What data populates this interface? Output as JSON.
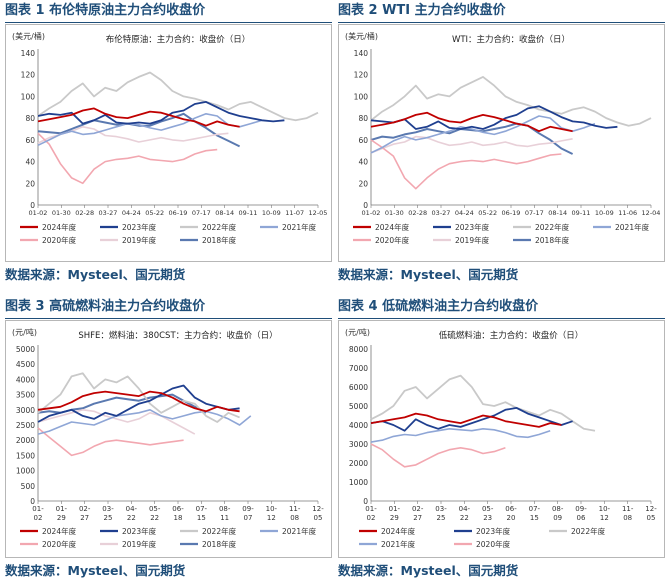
{
  "panels": [
    {
      "title": "图表 1 布伦特原油主力合约收盘价",
      "source": "数据来源：Mysteel、国元期货",
      "chart_data": {
        "type": "line",
        "unit_label": "(美元/桶)",
        "inner_title": "布伦特原油：主力合约：收盘价（日）",
        "ylim": [
          0,
          140
        ],
        "yticks": [
          0,
          20,
          40,
          60,
          80,
          100,
          120,
          140
        ],
        "x_ticks": [
          "01-02",
          "01-30",
          "02-28",
          "03-27",
          "04-24",
          "05-22",
          "06-19",
          "07-17",
          "08-14",
          "09-11",
          "10-09",
          "11-07",
          "12-05"
        ],
        "legend_cols": 4,
        "series": [
          {
            "name": "2024年度",
            "color": "#c00000",
            "width": 1.8,
            "values": [
              77,
              79,
              81,
              83,
              87,
              89,
              84,
              81,
              80,
              83,
              86,
              85,
              82,
              79,
              77,
              73,
              77,
              74,
              72
            ]
          },
          {
            "name": "2023年度",
            "color": "#1f3f8f",
            "width": 1.8,
            "values": [
              82,
              84,
              83,
              85,
              75,
              78,
              83,
              76,
              75,
              76,
              75,
              78,
              85,
              87,
              93,
              95,
              90,
              85,
              82,
              80,
              78,
              77,
              78
            ]
          },
          {
            "name": "2022年度",
            "color": "#c9c9c9",
            "width": 1.8,
            "values": [
              82,
              89,
              95,
              105,
              112,
              100,
              108,
              105,
              113,
              118,
              122,
              115,
              105,
              100,
              98,
              95,
              92,
              88,
              93,
              95,
              90,
              85,
              80,
              78,
              80,
              85
            ]
          },
          {
            "name": "2021年度",
            "color": "#8fa6d6",
            "width": 1.6,
            "values": [
              55,
              60,
              65,
              68,
              65,
              66,
              69,
              72,
              75,
              74,
              71,
              69,
              72,
              75,
              80,
              84,
              82,
              74,
              72,
              75,
              78
            ]
          },
          {
            "name": "2020年度",
            "color": "#f2a7b0",
            "width": 1.6,
            "values": [
              66,
              56,
              38,
              25,
              20,
              33,
              40,
              42,
              43,
              45,
              42,
              41,
              40,
              42,
              47,
              50,
              51
            ]
          },
          {
            "name": "2019年度",
            "color": "#e8d0d8",
            "width": 1.6,
            "values": [
              57,
              62,
              65,
              68,
              72,
              70,
              64,
              63,
              61,
              58,
              60,
              62,
              60,
              59,
              61,
              63,
              65,
              66
            ]
          },
          {
            "name": "2018年度",
            "color": "#5a79b0",
            "width": 2.0,
            "values": [
              68,
              67,
              66,
              70,
              74,
              78,
              76,
              74,
              75,
              73,
              73,
              77,
              80,
              84,
              77,
              71,
              64,
              59,
              54
            ]
          }
        ]
      }
    },
    {
      "title": "图表 2 WTI 主力合约收盘价",
      "source": "数据来源：Mysteel、国元期货",
      "chart_data": {
        "type": "line",
        "unit_label": "(美元/桶)",
        "inner_title": "WTI：主力合约：收盘价（日）",
        "ylim": [
          0,
          140
        ],
        "yticks": [
          0,
          20,
          40,
          60,
          80,
          100,
          120,
          140
        ],
        "x_ticks": [
          "01-02",
          "01-30",
          "02-28",
          "03-27",
          "04-24",
          "05-22",
          "06-19",
          "07-17",
          "08-14",
          "09-11",
          "10-09",
          "11-06",
          "12-04"
        ],
        "legend_cols": 4,
        "series": [
          {
            "name": "2024年度",
            "color": "#c00000",
            "width": 1.8,
            "values": [
              72,
              74,
              76,
              79,
              83,
              85,
              80,
              77,
              76,
              80,
              83,
              81,
              78,
              75,
              73,
              68,
              72,
              70,
              68
            ]
          },
          {
            "name": "2023年度",
            "color": "#1f3f8f",
            "width": 1.8,
            "values": [
              78,
              77,
              76,
              79,
              70,
              72,
              77,
              71,
              70,
              72,
              70,
              74,
              80,
              83,
              89,
              91,
              86,
              81,
              77,
              76,
              73,
              71,
              72
            ]
          },
          {
            "name": "2022年度",
            "color": "#c9c9c9",
            "width": 1.8,
            "values": [
              78,
              86,
              92,
              100,
              110,
              98,
              102,
              100,
              108,
              113,
              118,
              110,
              100,
              95,
              92,
              88,
              86,
              84,
              88,
              90,
              86,
              80,
              76,
              73,
              75,
              80
            ]
          },
          {
            "name": "2021年度",
            "color": "#8fa6d6",
            "width": 1.6,
            "values": [
              48,
              53,
              59,
              63,
              60,
              62,
              65,
              68,
              72,
              70,
              67,
              65,
              68,
              72,
              77,
              82,
              80,
              71,
              68,
              71,
              75
            ]
          },
          {
            "name": "2020年度",
            "color": "#f2a7b0",
            "width": 1.6,
            "values": [
              60,
              53,
              45,
              25,
              15,
              25,
              33,
              38,
              40,
              41,
              40,
              42,
              40,
              38,
              40,
              43,
              46,
              47
            ]
          },
          {
            "name": "2019年度",
            "color": "#e8d0d8",
            "width": 1.6,
            "values": [
              48,
              52,
              56,
              58,
              63,
              62,
              58,
              55,
              56,
              58,
              55,
              56,
              58,
              55,
              54,
              56,
              57,
              59,
              61
            ]
          },
          {
            "name": "2018年度",
            "color": "#5a79b0",
            "width": 2.0,
            "values": [
              60,
              63,
              62,
              65,
              67,
              70,
              68,
              66,
              70,
              69,
              68,
              70,
              72,
              75,
              73,
              66,
              60,
              52,
              47
            ]
          }
        ]
      }
    },
    {
      "title": "图表 3 高硫燃料油主力合约收盘价",
      "source": "数据来源：Mysteel、国元期货",
      "chart_data": {
        "type": "line",
        "unit_label": "(元/吨)",
        "inner_title": "SHFE：燃料油：380CST：主力合约：收盘价（日）",
        "ylim": [
          0,
          5000
        ],
        "yticks": [
          0,
          500,
          1000,
          1500,
          2000,
          2500,
          3000,
          3500,
          4000,
          4500,
          5000
        ],
        "x_ticks": [
          [
            "01-",
            "02"
          ],
          [
            "01-",
            "29"
          ],
          [
            "02-",
            "27"
          ],
          [
            "03-",
            "25"
          ],
          [
            "04-",
            "22"
          ],
          [
            "05-",
            "22"
          ],
          [
            "06-",
            "18"
          ],
          [
            "07-",
            "15"
          ],
          [
            "08-",
            "11"
          ],
          [
            "09-",
            "07"
          ],
          [
            "10-",
            "12"
          ],
          [
            "11-",
            "08"
          ],
          [
            "12-",
            "05"
          ]
        ],
        "legend_cols": 4,
        "series": [
          {
            "name": "2024年度",
            "color": "#c00000",
            "width": 1.8,
            "values": [
              3000,
              3050,
              3100,
              3250,
              3450,
              3550,
              3600,
              3550,
              3500,
              3450,
              3600,
              3550,
              3400,
              3200,
              3050,
              2950,
              3100,
              3000,
              2950
            ]
          },
          {
            "name": "2023年度",
            "color": "#1f3f8f",
            "width": 1.8,
            "values": [
              2600,
              2800,
              2900,
              3000,
              2800,
              2700,
              2900,
              2800,
              3000,
              3200,
              3300,
              3500,
              3700,
              3800,
              3400,
              3200,
              3100,
              3000,
              3050
            ]
          },
          {
            "name": "2022年度",
            "color": "#c9c9c9",
            "width": 1.8,
            "values": [
              2900,
              3200,
              3500,
              4100,
              4200,
              3700,
              4000,
              3900,
              4100,
              3700,
              3200,
              2900,
              3100,
              3300,
              3200,
              2800,
              2600,
              2900,
              2750
            ]
          },
          {
            "name": "2021年度",
            "color": "#8fa6d6",
            "width": 1.6,
            "values": [
              2200,
              2300,
              2450,
              2600,
              2550,
              2500,
              2650,
              2800,
              2850,
              2900,
              3000,
              2800,
              2700,
              2800,
              2900,
              2950,
              2850,
              2700,
              2500,
              2800
            ]
          },
          {
            "name": "2020年度",
            "color": "#f2a7b0",
            "width": 1.6,
            "values": [
              2400,
              2100,
              1800,
              1500,
              1600,
              1800,
              1950,
              2000,
              1950,
              1900,
              1850,
              1900,
              1950,
              2000
            ]
          },
          {
            "name": "2019年度",
            "color": "#e8d0d8",
            "width": 1.6,
            "values": [
              2600,
              2700,
              2800,
              2900,
              3000,
              2950,
              2800,
              2700,
              2600,
              2700,
              2900,
              2800,
              2600,
              2400,
              2200
            ]
          },
          {
            "name": "2018年度",
            "color": "#5a79b0",
            "width": 2.0,
            "values": [
              2900,
              2950,
              2900,
              3000,
              3050,
              3200,
              3300,
              3400,
              3350,
              3300,
              3400,
              3450,
              3500,
              3300,
              3100,
              2900
            ]
          }
        ]
      }
    },
    {
      "title": "图表 4 低硫燃料油主力合约收盘价",
      "source": "数据来源：Mysteel、国元期货",
      "chart_data": {
        "type": "line",
        "unit_label": "(元/吨)",
        "inner_title": "低硫燃料油：主力合约：收盘价（日）",
        "ylim": [
          0,
          8000
        ],
        "yticks": [
          0,
          1000,
          2000,
          3000,
          4000,
          5000,
          6000,
          7000,
          8000
        ],
        "x_ticks": [
          [
            "01-",
            "02"
          ],
          [
            "01-",
            "29"
          ],
          [
            "02-",
            "27"
          ],
          [
            "03-",
            "25"
          ],
          [
            "04-",
            "22"
          ],
          [
            "05-",
            "23"
          ],
          [
            "06-",
            "20"
          ],
          [
            "07-",
            "15"
          ],
          [
            "08-",
            "09"
          ],
          [
            "09-",
            "06"
          ],
          [
            "10-",
            "12"
          ],
          [
            "11-",
            "08"
          ],
          [
            "12-",
            "05"
          ]
        ],
        "legend_cols": 3,
        "series": [
          {
            "name": "2024年度",
            "color": "#c00000",
            "width": 1.8,
            "values": [
              4100,
              4200,
              4300,
              4400,
              4600,
              4500,
              4300,
              4200,
              4100,
              4300,
              4500,
              4400,
              4200,
              4100,
              4000,
              3900,
              4100,
              4000
            ]
          },
          {
            "name": "2023年度",
            "color": "#1f3f8f",
            "width": 1.8,
            "values": [
              4100,
              4200,
              4000,
              3700,
              4300,
              4000,
              3800,
              4000,
              3900,
              4100,
              4300,
              4500,
              4800,
              4900,
              4600,
              4400,
              4200,
              4000,
              4200
            ]
          },
          {
            "name": "2022年度",
            "color": "#c9c9c9",
            "width": 1.8,
            "values": [
              4300,
              4600,
              5000,
              5800,
              6000,
              5400,
              5900,
              6400,
              6600,
              6000,
              5100,
              5000,
              5200,
              4900,
              4700,
              4500,
              4800,
              4600,
              4200,
              3800,
              3700
            ]
          },
          {
            "name": "2021年度",
            "color": "#8fa6d6",
            "width": 1.6,
            "values": [
              3100,
              3200,
              3400,
              3500,
              3450,
              3600,
              3700,
              3800,
              3750,
              3700,
              3800,
              3750,
              3600,
              3400,
              3350,
              3500,
              3700
            ]
          },
          {
            "name": "2020年度",
            "color": "#f2a7b0",
            "width": 1.6,
            "values": [
              3000,
              2700,
              2200,
              1800,
              1900,
              2200,
              2500,
              2700,
              2800,
              2700,
              2500,
              2600,
              2800
            ]
          }
        ]
      }
    }
  ]
}
